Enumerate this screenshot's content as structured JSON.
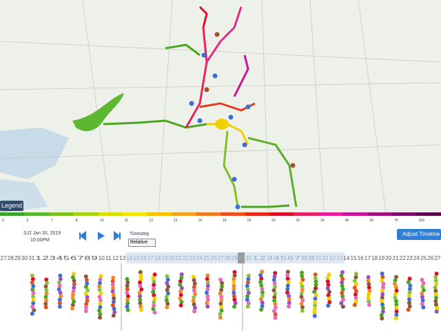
{
  "legend_button": "Legend",
  "scale_labels": [
    "0",
    "5",
    "7",
    "8",
    "10",
    "11",
    "12",
    "13",
    "14",
    "16",
    "18",
    "20",
    "25",
    "30",
    "40",
    "50",
    "75",
    "100"
  ],
  "date": "SJJ Jan 30, 2019",
  "time": "10:00PM",
  "timestep_label": "Timestep",
  "timestep_value": "Relative",
  "adjust_button": "Adjust Timeline",
  "days": [
    27,
    28,
    29,
    30,
    31,
    1,
    2,
    3,
    4,
    5,
    6,
    7,
    8,
    9,
    10,
    11,
    12,
    13,
    14,
    15,
    16,
    17,
    18,
    19,
    20,
    21,
    22,
    23,
    24,
    25,
    26,
    27,
    28,
    29,
    30,
    31,
    1,
    2,
    3,
    4,
    5,
    6,
    7,
    8,
    9,
    10,
    11,
    12,
    13,
    14,
    15,
    16,
    17,
    18,
    19,
    20,
    21,
    22,
    23,
    24,
    25,
    26,
    27
  ]
}
